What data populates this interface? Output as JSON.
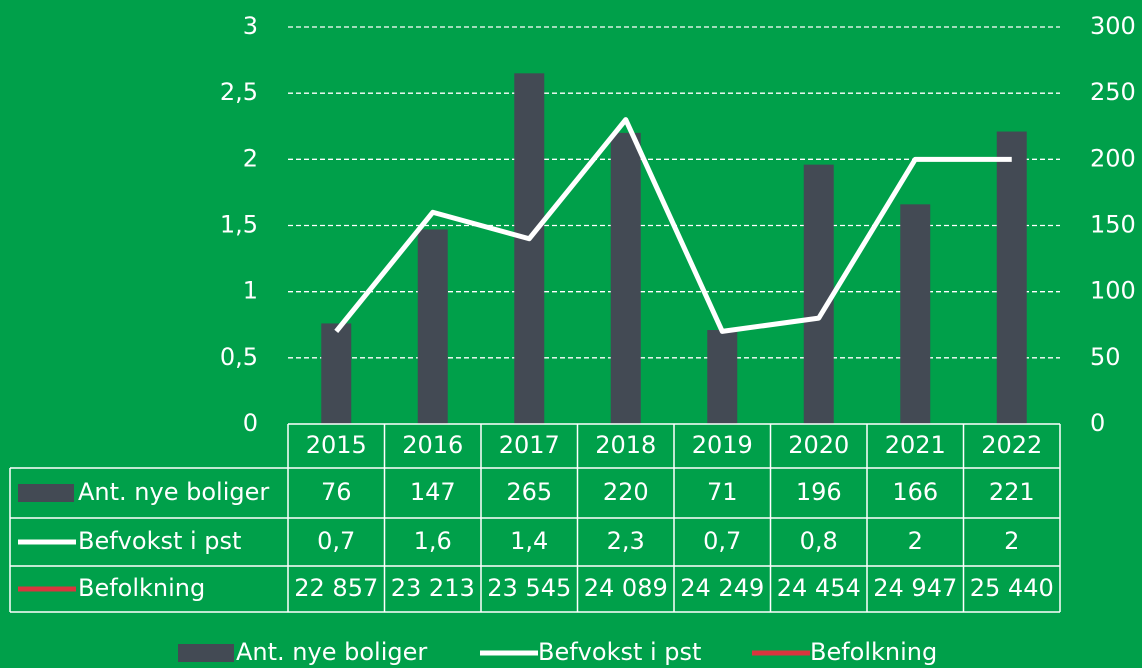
{
  "chart_data": {
    "type": "bar",
    "categories": [
      "2015",
      "2016",
      "2017",
      "2018",
      "2019",
      "2020",
      "2021",
      "2022"
    ],
    "series": [
      {
        "name": "Ant. nye boliger",
        "type": "bar",
        "axis": "y2",
        "color": "#434a54",
        "values": [
          76,
          147,
          265,
          220,
          71,
          196,
          166,
          221
        ]
      },
      {
        "name": "Befvokst i pst",
        "type": "line",
        "color": "#ffffff",
        "values": [
          0.7,
          1.6,
          1.4,
          2.3,
          0.7,
          0.8,
          2,
          2
        ],
        "value_labels": [
          "0,7",
          "1,6",
          "1,4",
          "2,3",
          "0,7",
          "0,8",
          "2",
          "2"
        ]
      },
      {
        "name": "Befolkning",
        "type": "line",
        "color": "#d9363e",
        "values": [
          22857,
          23213,
          23545,
          24089,
          24249,
          24454,
          24947,
          25440
        ],
        "value_labels": [
          "22 857",
          "23 213",
          "23 545",
          "24 089",
          "24 249",
          "24 454",
          "24 947",
          "25 440"
        ]
      }
    ],
    "ylim": [
      0,
      3
    ],
    "yticks": [
      0,
      {
        "value": 0.5,
        "label": "0,5"
      },
      1,
      {
        "value": 1.5,
        "label": "1,5"
      },
      2,
      {
        "value": 2.5,
        "label": "2,5"
      },
      3
    ],
    "y2lim": [
      0,
      300
    ],
    "y2ticks": [
      0,
      50,
      100,
      150,
      200,
      250,
      300
    ],
    "grid": true,
    "legend": "bottom"
  }
}
